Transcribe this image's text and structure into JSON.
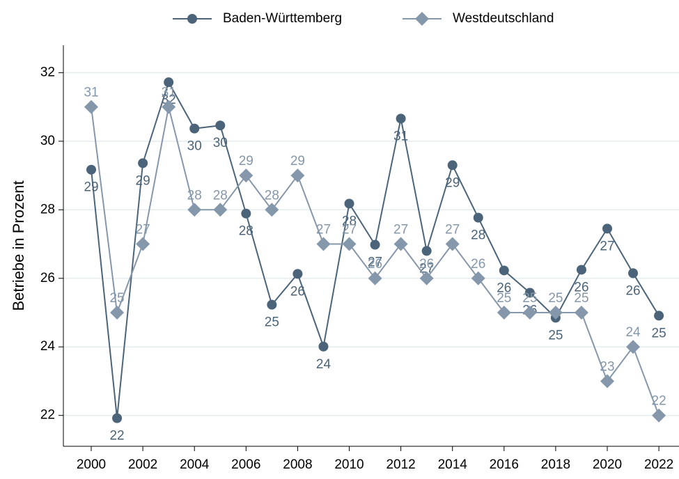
{
  "chart_data": {
    "type": "line",
    "ylabel": "Betriebe in Prozent",
    "x": [
      2000,
      2001,
      2002,
      2003,
      2004,
      2005,
      2006,
      2007,
      2008,
      2009,
      2010,
      2011,
      2012,
      2013,
      2014,
      2015,
      2016,
      2017,
      2018,
      2019,
      2020,
      2021,
      2022
    ],
    "series": [
      {
        "name": "Baden-Württemberg",
        "color": "#4b6479",
        "marker": "circle",
        "values": [
          29.17,
          21.92,
          29.36,
          31.72,
          30.37,
          30.46,
          27.89,
          25.23,
          26.13,
          24.01,
          28.18,
          26.98,
          30.66,
          26.8,
          29.3,
          27.77,
          26.23,
          25.58,
          24.85,
          26.25,
          27.45,
          26.15,
          24.91
        ],
        "value_labels": [
          "29",
          "22",
          "29",
          "32",
          "30",
          "30",
          "28",
          "25",
          "26",
          "24",
          "28",
          "27",
          "31",
          "27",
          "29",
          "28",
          "26",
          "26",
          "25",
          "26",
          "27",
          "26",
          "25"
        ]
      },
      {
        "name": "Westdeutschland",
        "color": "#8597aa",
        "marker": "diamond",
        "values": [
          31,
          25,
          27,
          31,
          28,
          28,
          29,
          28,
          29,
          27,
          27,
          26,
          27,
          26,
          27,
          26,
          25,
          25,
          25,
          25,
          23,
          24,
          22
        ]
      }
    ],
    "xlim": [
      1998.92,
      2022.78
    ],
    "xticks": [
      2000,
      2002,
      2004,
      2006,
      2008,
      2010,
      2012,
      2014,
      2016,
      2018,
      2020,
      2022
    ],
    "ylim": [
      21.1,
      32.8
    ],
    "yticks": [
      22,
      24,
      26,
      28,
      30,
      32
    ],
    "grid": true,
    "legend": "top"
  }
}
